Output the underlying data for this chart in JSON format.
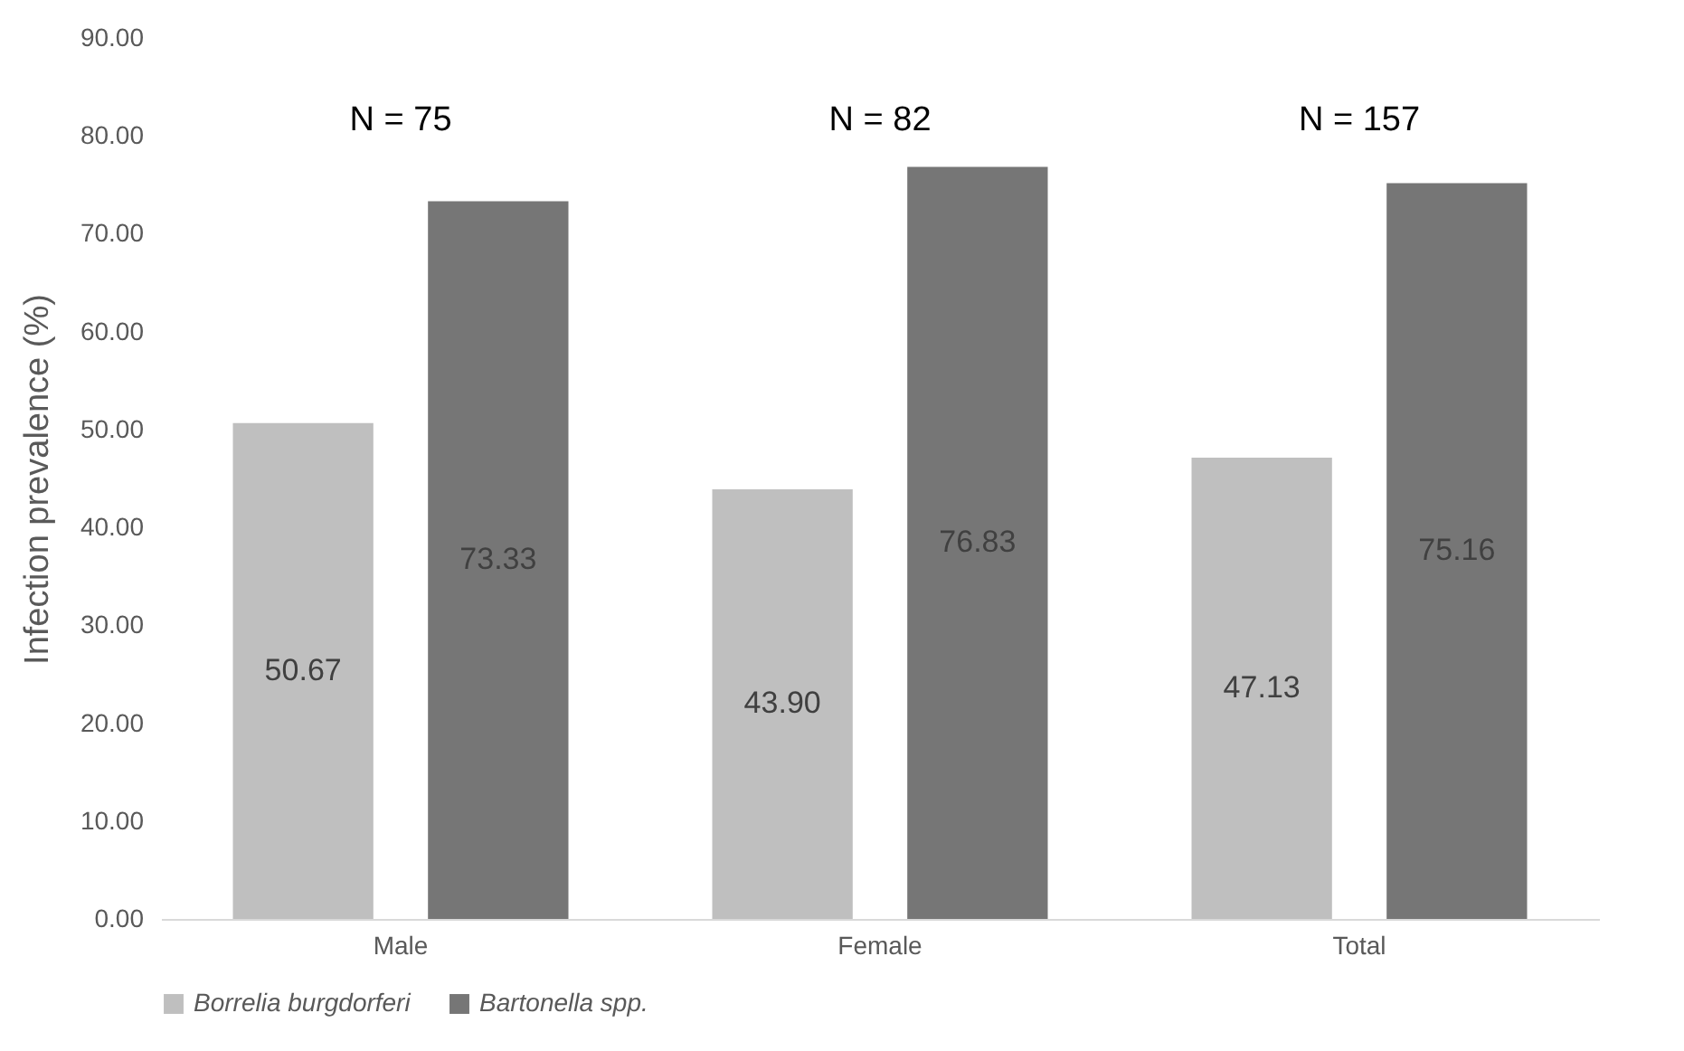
{
  "chart_data": {
    "type": "bar",
    "ylabel": "Infection prevalence (%)",
    "categories": [
      "Male",
      "Female",
      "Total"
    ],
    "series": [
      {
        "name": "Borrelia burgdorferi",
        "color": "#bfbfbf",
        "values": [
          50.67,
          43.9,
          47.13
        ],
        "value_labels": [
          "50.67",
          "43.90",
          "47.13"
        ]
      },
      {
        "name": "Bartonella spp.",
        "color": "#767676",
        "values": [
          73.33,
          76.83,
          75.16
        ],
        "value_labels": [
          "73.33",
          "76.83",
          "75.16"
        ]
      }
    ],
    "ylim": [
      0,
      90
    ],
    "yticks": [
      {
        "value": 0,
        "label": "0.00"
      },
      {
        "value": 10,
        "label": "10.00"
      },
      {
        "value": 20,
        "label": "20.00"
      },
      {
        "value": 30,
        "label": "30.00"
      },
      {
        "value": 40,
        "label": "40.00"
      },
      {
        "value": 50,
        "label": "50.00"
      },
      {
        "value": 60,
        "label": "60.00"
      },
      {
        "value": 70,
        "label": "70.00"
      },
      {
        "value": 80,
        "label": "80.00"
      },
      {
        "value": 90,
        "label": "90.00"
      }
    ],
    "legend": "bottom",
    "grid": false,
    "annotations": [
      "N = 75",
      "N = 82",
      "N = 157"
    ]
  }
}
